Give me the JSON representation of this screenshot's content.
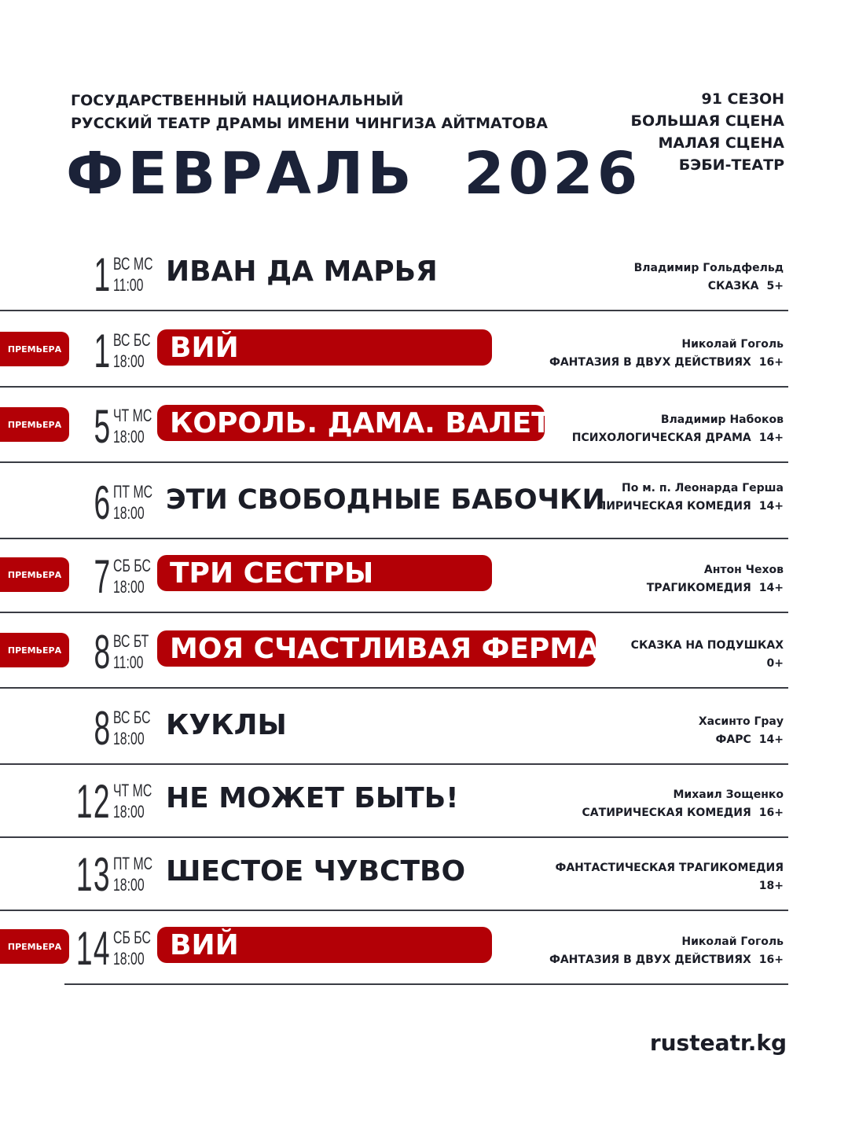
{
  "header": {
    "org_line1": "ГОСУДАРСТВЕННЫЙ НАЦИОНАЛЬНЫЙ",
    "org_line2": "РУССКИЙ ТЕАТР ДРАМЫ ИМЕНИ ЧИНГИЗА АЙТМАТОВА",
    "month_title": "ФЕВРАЛЬ  2026",
    "season": "91 СЕЗОН",
    "stage1": "БОЛЬШАЯ СЦЕНА",
    "stage2": "МАЛАЯ СЦЕНА",
    "stage3": "БЭБИ-ТЕАТР"
  },
  "premiere_label": "ПРЕМЬЕРА",
  "colors": {
    "accent": "#b30006",
    "text": "#1b1d27",
    "title": "#1b2238"
  },
  "events": [
    {
      "day": "1",
      "weekday": "ВС",
      "stage": "МС",
      "time": "11:00",
      "title": "ИВАН ДА МАРЬЯ",
      "premiere": false,
      "author": "Владимир Гольдфельд",
      "genre": "СКАЗКА",
      "age": "5+"
    },
    {
      "day": "1",
      "weekday": "ВС",
      "stage": "БС",
      "time": "18:00",
      "title": "ВИЙ",
      "premiere": true,
      "author": "Николай Гоголь",
      "genre": "ФАНТАЗИЯ В ДВУХ ДЕЙСТВИЯХ",
      "age": "16+"
    },
    {
      "day": "5",
      "weekday": "ЧТ",
      "stage": "МС",
      "time": "18:00",
      "title": "КОРОЛЬ. ДАМА. ВАЛЕТ.",
      "premiere": true,
      "author": "Владимир Набоков",
      "genre": "ПСИХОЛОГИЧЕСКАЯ ДРАМА",
      "age": "14+"
    },
    {
      "day": "6",
      "weekday": "ПТ",
      "stage": "МС",
      "time": "18:00",
      "title": "ЭТИ СВОБОДНЫЕ БАБОЧКИ",
      "premiere": false,
      "author": "По м. п. Леонарда Герша",
      "genre": "ЛИРИЧЕСКАЯ КОМЕДИЯ",
      "age": "14+"
    },
    {
      "day": "7",
      "weekday": "СБ",
      "stage": "БС",
      "time": "18:00",
      "title": "ТРИ СЕСТРЫ",
      "premiere": true,
      "author": "Антон Чехов",
      "genre": "ТРАГИКОМЕДИЯ",
      "age": "14+"
    },
    {
      "day": "8",
      "weekday": "ВС",
      "stage": "БТ",
      "time": "11:00",
      "title": "МОЯ СЧАСТЛИВАЯ ФЕРМА",
      "premiere": true,
      "author": "",
      "genre": "СКАЗКА НА ПОДУШКАХ",
      "age": "0+"
    },
    {
      "day": "8",
      "weekday": "ВС",
      "stage": "БС",
      "time": "18:00",
      "title": "КУКЛЫ",
      "premiere": false,
      "author": "Хасинто Грау",
      "genre": "ФАРС",
      "age": "14+"
    },
    {
      "day": "12",
      "weekday": "ЧТ",
      "stage": "МС",
      "time": "18:00",
      "title": "НЕ МОЖЕТ БЫТЬ!",
      "premiere": false,
      "author": "Михаил Зощенко",
      "genre": "САТИРИЧЕСКАЯ КОМЕДИЯ",
      "age": "16+"
    },
    {
      "day": "13",
      "weekday": "ПТ",
      "stage": "МС",
      "time": "18:00",
      "title": "ШЕСТОЕ ЧУВСТВО",
      "premiere": false,
      "author": "",
      "genre": "ФАНТАСТИЧЕСКАЯ ТРАГИКОМЕДИЯ",
      "age": "18+"
    },
    {
      "day": "14",
      "weekday": "СБ",
      "stage": "БС",
      "time": "18:00",
      "title": "ВИЙ",
      "premiere": true,
      "author": "Николай Гоголь",
      "genre": "ФАНТАЗИЯ В ДВУХ ДЕЙСТВИЯХ",
      "age": "16+"
    }
  ],
  "footer": {
    "site": "rusteatr.kg"
  }
}
